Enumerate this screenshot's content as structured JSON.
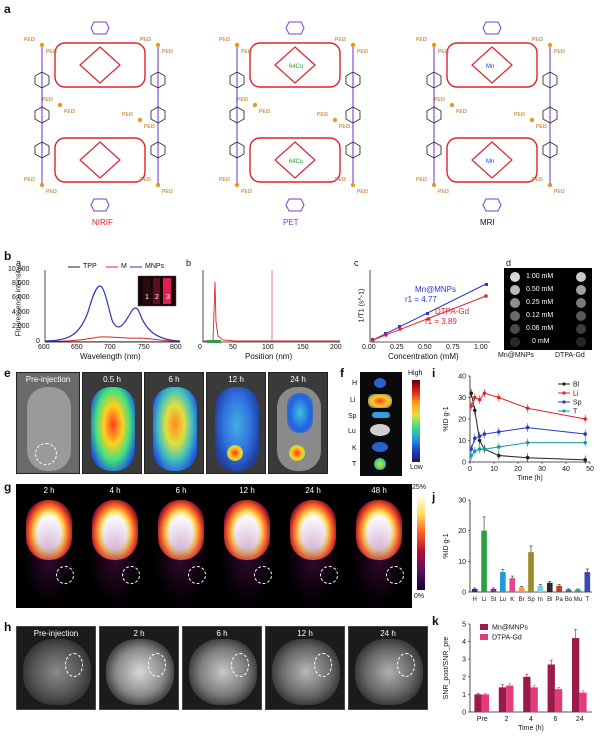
{
  "panel_a": {
    "letter": "a",
    "captions": [
      "NIRIF",
      "PET",
      "MRI"
    ],
    "caption_colors": [
      "#e0202a",
      "#7b3fd0",
      "#111111"
    ],
    "ligand_label": "PEt3",
    "metal_labels": [
      "64Cu",
      "Mn"
    ]
  },
  "panel_b": {
    "letter": "b",
    "sub_letters": [
      "a",
      "b",
      "c",
      "d"
    ],
    "a": {
      "ylabel": "Fluorescence intensity",
      "xlabel": "Wavelength (nm)",
      "yticks": [
        "10,000",
        "8,000",
        "6,000",
        "4,000",
        "2,000",
        "0"
      ],
      "xticks": [
        "600",
        "650",
        "700",
        "750",
        "800"
      ],
      "legend": [
        "TPP",
        "M",
        "MNPs"
      ],
      "inset_labels": [
        "1",
        "2",
        "3"
      ]
    },
    "b": {
      "xlabel": "Position (nm)",
      "xticks": [
        "0",
        "50",
        "100",
        "150",
        "200"
      ]
    },
    "c": {
      "ylabel": "1/T1 (s^-1)",
      "xlabel": "Concentration (mM)",
      "xticks": [
        "0.00",
        "0.25",
        "0.50",
        "0.75",
        "1.00"
      ],
      "series_label_1": "Mn@MNPs",
      "series_rel_1": "r1 = 4.77",
      "series_label_2": "DTPA-Gd",
      "series_rel_2": "r1 = 3.89"
    },
    "d": {
      "concentrations": [
        "1.00 mM",
        "0.50 mM",
        "0.25 mM",
        "0.12 mM",
        "0.06 mM",
        "0 mM"
      ],
      "columns": [
        "Mn@MNPs",
        "DTPA-Gd"
      ]
    }
  },
  "panel_e": {
    "letter": "e",
    "timepoints": [
      "Pre-injection",
      "0.5 h",
      "6 h",
      "12 h",
      "24 h"
    ]
  },
  "panel_f": {
    "letter": "f",
    "organs": [
      "H",
      "Li",
      "Sp",
      "Lu",
      "K",
      "T"
    ],
    "scale_high": "High",
    "scale_low": "Low"
  },
  "panel_g": {
    "letter": "g",
    "timepoints": [
      "2 h",
      "4 h",
      "6 h",
      "12 h",
      "24 h",
      "48 h"
    ],
    "scale_max": "25%",
    "scale_min": "0%"
  },
  "panel_h": {
    "letter": "h",
    "timepoints": [
      "Pre-injection",
      "2 h",
      "6 h",
      "12 h",
      "24 h"
    ]
  },
  "chart_data": [
    {
      "panel": "i",
      "type": "line",
      "xlabel": "Time (h)",
      "ylabel": "%ID g-1",
      "xlim": [
        0,
        50
      ],
      "ylim": [
        0,
        40
      ],
      "xticks": [
        "0",
        "10",
        "20",
        "30",
        "40",
        "50"
      ],
      "yticks": [
        "0",
        "10",
        "20",
        "30",
        "40"
      ],
      "x": [
        0.5,
        2,
        4,
        6,
        12,
        24,
        48
      ],
      "series": [
        {
          "name": "Bl",
          "color": "#222222",
          "values": [
            32,
            24,
            10,
            6,
            3,
            2,
            1
          ]
        },
        {
          "name": "Li",
          "color": "#e0242a",
          "values": [
            26,
            30,
            29,
            32,
            30,
            25,
            20
          ]
        },
        {
          "name": "Sp",
          "color": "#2838c8",
          "values": [
            6,
            11,
            12,
            13,
            14,
            16,
            13
          ]
        },
        {
          "name": "T",
          "color": "#1a9a9a",
          "values": [
            3,
            5,
            6,
            6,
            7,
            9,
            9
          ]
        }
      ]
    },
    {
      "panel": "j",
      "type": "bar",
      "ylabel": "%ID g-1",
      "ylim": [
        0,
        30
      ],
      "yticks": [
        "0",
        "10",
        "20",
        "30"
      ],
      "categories": [
        "H",
        "Li",
        "St",
        "Lu",
        "K",
        "Br",
        "Sp",
        "In",
        "Bl",
        "Pa",
        "Bo",
        "Mu",
        "T"
      ],
      "values": [
        1,
        20,
        1,
        6.5,
        4.5,
        1.5,
        13,
        2,
        3,
        2,
        0.8,
        0.8,
        6.5
      ],
      "errors": [
        0.3,
        4.5,
        0.3,
        0.8,
        0.7,
        0.3,
        2.0,
        0.4,
        0.5,
        0.4,
        0.2,
        0.2,
        1.0
      ],
      "colors": [
        "#2a2a80",
        "#2aa040",
        "#8a2a8a",
        "#1f9ad6",
        "#e0478c",
        "#ff9a2a",
        "#9a8a2a",
        "#7ad0e0",
        "#2a2a2a",
        "#c0392b",
        "#2a6ab8",
        "#26a0a0",
        "#3a4ab0"
      ]
    },
    {
      "panel": "k",
      "type": "bar",
      "xlabel": "Time (h)",
      "ylabel": "SNR_post/SNR_pre",
      "ylim": [
        0,
        5
      ],
      "yticks": [
        "0",
        "1",
        "2",
        "3",
        "4",
        "5"
      ],
      "categories": [
        "Pre",
        "2",
        "4",
        "6",
        "24"
      ],
      "series": [
        {
          "name": "Mn@MNPs",
          "color": "#9a1a4a",
          "values": [
            1.0,
            1.4,
            2.0,
            2.7,
            4.2
          ],
          "errors": [
            0.05,
            0.15,
            0.15,
            0.25,
            0.5
          ]
        },
        {
          "name": "DTPA-Gd",
          "color": "#e23a7a",
          "values": [
            1.0,
            1.5,
            1.4,
            1.3,
            1.1
          ],
          "errors": [
            0.05,
            0.1,
            0.1,
            0.1,
            0.1
          ]
        }
      ]
    }
  ]
}
